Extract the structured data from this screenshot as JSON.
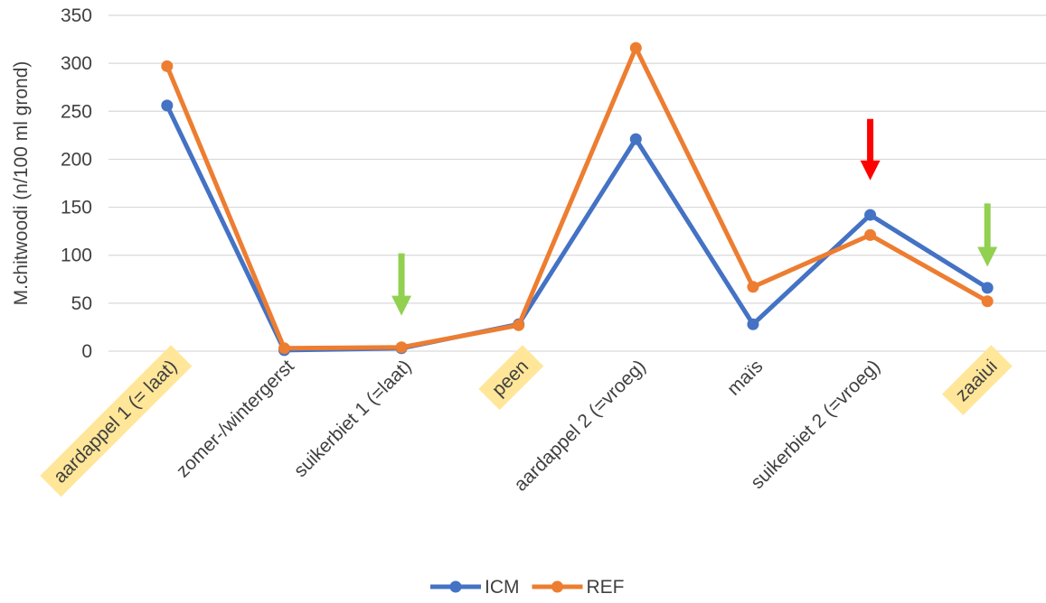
{
  "chart_data": {
    "type": "line",
    "ylabel": "M.chitwoodi (n/100 ml grond)",
    "xlabel": "",
    "ylim": [
      0,
      350
    ],
    "yticks": [
      0,
      50,
      100,
      150,
      200,
      250,
      300,
      350
    ],
    "grid": true,
    "legend_position": "bottom",
    "categories": [
      "aardappel 1 (= laat)",
      "zomer-/wintergerst",
      "suikerbiet 1 (=laat)",
      "peen",
      "aardappel 2 (=vroeg)",
      "maïs",
      "suikerbiet 2 (=vroeg)",
      "zaaiui"
    ],
    "highlighted_categories": [
      "aardappel 1 (= laat)",
      "peen",
      "zaaiui"
    ],
    "series": [
      {
        "name": "ICM",
        "color": "#4472C4",
        "values": [
          256,
          1,
          3,
          28,
          221,
          28,
          142,
          66
        ]
      },
      {
        "name": "REF",
        "color": "#ED7D31",
        "values": [
          297,
          3,
          4,
          27,
          316,
          67,
          121,
          52
        ]
      }
    ],
    "annotations": [
      {
        "type": "arrow-down",
        "category": "suikerbiet 1 (=laat)",
        "y_top": 102,
        "y_bottom": 37,
        "color": "#92D050"
      },
      {
        "type": "arrow-down",
        "category": "suikerbiet 2 (=vroeg)",
        "y_top": 242,
        "y_bottom": 178,
        "color": "#FF0000"
      },
      {
        "type": "arrow-down",
        "category": "zaaiui",
        "y_top": 154,
        "y_bottom": 88,
        "color": "#92D050"
      }
    ],
    "highlight_color": "#FFE699",
    "gridline_color": "#D9D9D9"
  }
}
